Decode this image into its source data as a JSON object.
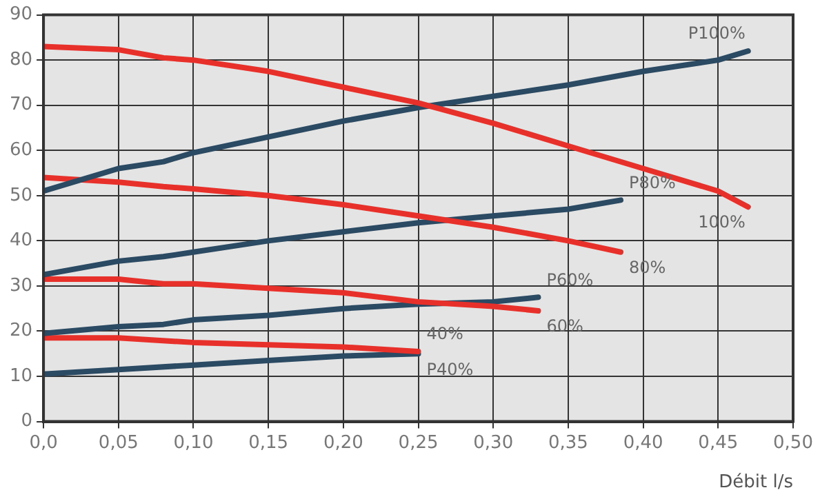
{
  "chart_data": {
    "type": "line",
    "xlabel": "Débit l/s",
    "xlim": [
      0,
      0.5
    ],
    "xticks": [
      {
        "value": 0,
        "label": "0,0"
      },
      {
        "value": 0.05,
        "label": "0,05"
      },
      {
        "value": 0.1,
        "label": "0,10"
      },
      {
        "value": 0.15,
        "label": "0,15"
      },
      {
        "value": 0.2,
        "label": "0,20"
      },
      {
        "value": 0.25,
        "label": "0,25"
      },
      {
        "value": 0.3,
        "label": "0,30"
      },
      {
        "value": 0.35,
        "label": "0,35"
      },
      {
        "value": 0.4,
        "label": "0,40"
      },
      {
        "value": 0.45,
        "label": "0,45"
      },
      {
        "value": 0.5,
        "label": "0,50"
      }
    ],
    "ylim": [
      0,
      90
    ],
    "yticks": [
      0,
      10,
      20,
      30,
      40,
      50,
      60,
      70,
      80,
      90
    ],
    "grid": true,
    "legend": false,
    "marker": "none",
    "line_style": "solid",
    "series": [
      {
        "name": "100%",
        "color": "#e8302a",
        "x": [
          0,
          0.05,
          0.08,
          0.1,
          0.15,
          0.2,
          0.25,
          0.3,
          0.35,
          0.4,
          0.45,
          0.47
        ],
        "values": [
          83,
          82.3,
          80.5,
          80,
          77.5,
          74,
          70.5,
          66,
          61,
          56,
          51,
          47.5
        ]
      },
      {
        "name": "P100%",
        "color": "#2b4a63",
        "x": [
          0,
          0.05,
          0.08,
          0.1,
          0.15,
          0.2,
          0.25,
          0.3,
          0.35,
          0.4,
          0.45,
          0.47
        ],
        "values": [
          51,
          56,
          57.5,
          59.5,
          63,
          66.5,
          69.5,
          72,
          74.5,
          77.5,
          80,
          82
        ]
      },
      {
        "name": "80%",
        "color": "#e8302a",
        "x": [
          0,
          0.05,
          0.08,
          0.1,
          0.15,
          0.2,
          0.25,
          0.3,
          0.35,
          0.385
        ],
        "values": [
          54,
          53,
          52,
          51.5,
          50,
          48,
          45.5,
          43,
          40,
          37.5
        ]
      },
      {
        "name": "P80%",
        "color": "#2b4a63",
        "x": [
          0,
          0.05,
          0.08,
          0.1,
          0.15,
          0.2,
          0.25,
          0.3,
          0.35,
          0.385
        ],
        "values": [
          32.5,
          35.5,
          36.5,
          37.5,
          40,
          42,
          44,
          45.5,
          47,
          49
        ]
      },
      {
        "name": "60%",
        "color": "#e8302a",
        "x": [
          0,
          0.05,
          0.08,
          0.1,
          0.15,
          0.2,
          0.25,
          0.3,
          0.33
        ],
        "values": [
          31.5,
          31.5,
          30.5,
          30.5,
          29.5,
          28.5,
          26.5,
          25.5,
          24.5
        ]
      },
      {
        "name": "P60%",
        "color": "#2b4a63",
        "x": [
          0,
          0.05,
          0.08,
          0.1,
          0.15,
          0.2,
          0.25,
          0.3,
          0.33
        ],
        "values": [
          19.5,
          21,
          21.5,
          22.5,
          23.5,
          25,
          26,
          26.5,
          27.5
        ]
      },
      {
        "name": "40%",
        "color": "#e8302a",
        "x": [
          0,
          0.05,
          0.1,
          0.15,
          0.2,
          0.25
        ],
        "values": [
          18.5,
          18.5,
          17.5,
          17,
          16.5,
          15.5
        ]
      },
      {
        "name": "P40%",
        "color": "#2b4a63",
        "x": [
          0,
          0.05,
          0.1,
          0.15,
          0.2,
          0.25
        ],
        "values": [
          10.5,
          11.5,
          12.5,
          13.5,
          14.5,
          15
        ]
      }
    ]
  }
}
